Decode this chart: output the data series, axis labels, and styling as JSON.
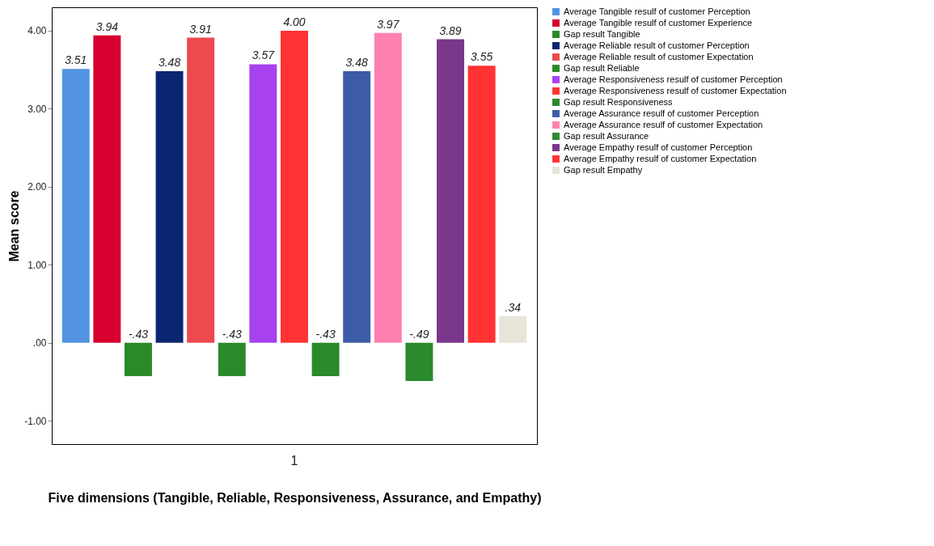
{
  "chart_data": {
    "type": "bar",
    "xlabel": "Five dimensions (Tangible, Reliable, Responsiveness, Assurance, and Empathy)",
    "ylabel": "Mean score",
    "categories": [
      "1"
    ],
    "ylim": [
      -1.3,
      4.3
    ],
    "yticks": [
      {
        "value": -1,
        "label": "-1.00"
      },
      {
        "value": 0,
        "label": ".00"
      },
      {
        "value": 1,
        "label": "1.00"
      },
      {
        "value": 2,
        "label": "2.00"
      },
      {
        "value": 3,
        "label": "3.00"
      },
      {
        "value": 4,
        "label": "4.00"
      }
    ],
    "legend": "right",
    "series": [
      {
        "name": "Average Tangible resulf of customer Perception",
        "color": "#5294e2",
        "values": [
          3.51
        ],
        "value_labels": [
          "3.51"
        ]
      },
      {
        "name": "Average Tangible resulf of customer Experience",
        "color": "#d7002f",
        "values": [
          3.94
        ],
        "value_labels": [
          "3.94"
        ]
      },
      {
        "name": "Gap result Tangible",
        "color": "#2a8a2a",
        "values": [
          -0.43
        ],
        "value_labels": [
          "-.43"
        ]
      },
      {
        "name": "Average Reliable result of customer Perception",
        "color": "#0b2670",
        "values": [
          3.48
        ],
        "value_labels": [
          "3.48"
        ]
      },
      {
        "name": "Average Reliable result of customer Expectation",
        "color": "#ec4a4e",
        "values": [
          3.91
        ],
        "value_labels": [
          "3.91"
        ]
      },
      {
        "name": "Gap result Reliable",
        "color": "#2a8a2b",
        "values": [
          -0.43
        ],
        "value_labels": [
          "-.43"
        ]
      },
      {
        "name": "Average Responsiveness resulf of customer Perception",
        "color": "#a742ee",
        "values": [
          3.57
        ],
        "value_labels": [
          "3.57"
        ]
      },
      {
        "name": "Average Responsiveness resulf of customer Expectation",
        "color": "#ff3333",
        "values": [
          4.0
        ],
        "value_labels": [
          "4.00"
        ]
      },
      {
        "name": "Gap result Responsiveness",
        "color": "#2a8a2c",
        "values": [
          -0.43
        ],
        "value_labels": [
          "-.43"
        ]
      },
      {
        "name": "Average Assurance resulf of customer Perception",
        "color": "#3d5ca8",
        "values": [
          3.48
        ],
        "value_labels": [
          "3.48"
        ]
      },
      {
        "name": "Average Assurance resulf of customer Expectation",
        "color": "#ff80b0",
        "values": [
          3.97
        ],
        "value_labels": [
          "3.97"
        ]
      },
      {
        "name": "Gap result Assurance",
        "color": "#2a8a2d",
        "values": [
          -0.49
        ],
        "value_labels": [
          "-.49"
        ]
      },
      {
        "name": "Average Empathy resulf of customer Perception",
        "color": "#7a378b",
        "values": [
          3.89
        ],
        "value_labels": [
          "3.89"
        ]
      },
      {
        "name": "Average Empathy resulf of customer Expectation",
        "color": "#ff3334",
        "values": [
          3.55
        ],
        "value_labels": [
          "3.55"
        ]
      },
      {
        "name": "Gap result Empathy",
        "color": "#e8e4d8",
        "values": [
          0.34
        ],
        "value_labels": [
          ".34"
        ]
      }
    ]
  }
}
